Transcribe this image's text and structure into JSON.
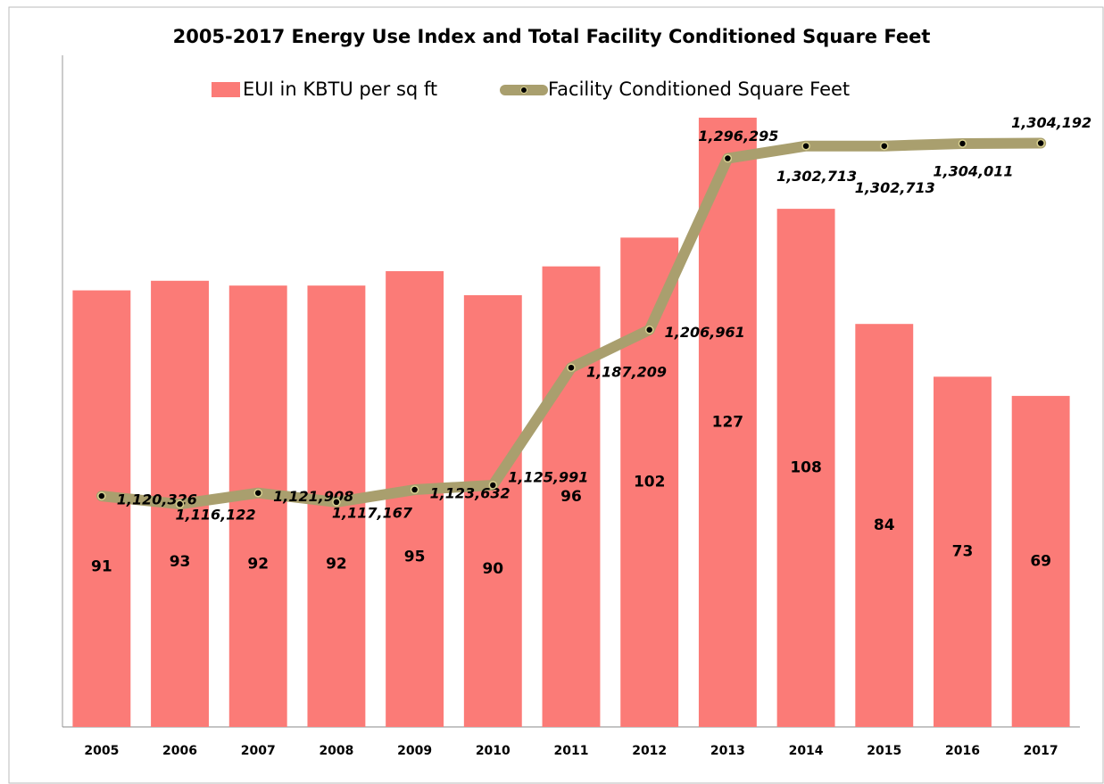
{
  "chart_data": {
    "type": "bar-line",
    "title": "2005-2017 Energy Use Index and Total Facility Conditioned Square Feet",
    "categories": [
      "2005",
      "2006",
      "2007",
      "2008",
      "2009",
      "2010",
      "2011",
      "2012",
      "2013",
      "2014",
      "2015",
      "2016",
      "2017"
    ],
    "series": [
      {
        "name": "EUI in KBTU per sq ft",
        "type": "bar",
        "color": "#fb7b77",
        "values": [
          91,
          93,
          92,
          92,
          95,
          90,
          96,
          102,
          127,
          108,
          84,
          73,
          69
        ]
      },
      {
        "name": "Facility Conditioned Square Feet",
        "type": "line",
        "axis": "y2",
        "color": "#a99f6e",
        "values": [
          1120326,
          1116122,
          1121908,
          1117167,
          1123632,
          1125991,
          1187209,
          1206961,
          1296295,
          1302713,
          1302713,
          1304011,
          1304192
        ],
        "value_labels": [
          "1,120,326",
          "1,116,122",
          "1,121,908",
          "1,117,167",
          "1,123,632",
          "1,125,991",
          "1,187,209",
          "1,206,961",
          "1,296,295",
          "1,302,713",
          "1,302,713",
          "1,304,011",
          "1,304,192"
        ]
      }
    ],
    "ylim": [
      0,
      140
    ],
    "y2lim": [
      1000000,
      1350000
    ],
    "legend": "top"
  }
}
